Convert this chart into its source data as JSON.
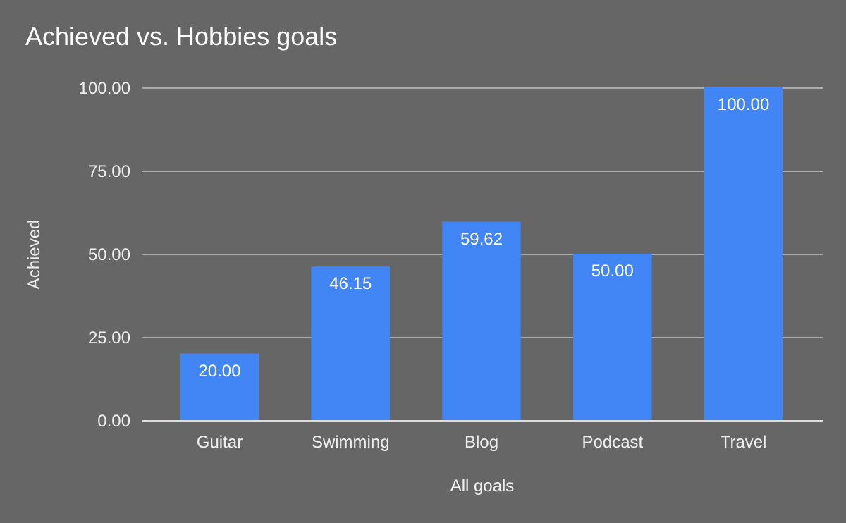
{
  "chart_data": {
    "type": "bar",
    "title": "Achieved vs. Hobbies goals",
    "xlabel": "All goals",
    "ylabel": "Achieved",
    "categories": [
      "Guitar",
      "Swimming",
      "Blog",
      "Podcast",
      "Travel"
    ],
    "values": [
      20,
      46.15,
      59.62,
      50,
      100
    ],
    "value_labels": [
      "20.00",
      "46.15",
      "59.62",
      "50.00",
      "100.00"
    ],
    "color": "#4285f4",
    "ylim": [
      0,
      100
    ],
    "yticks": [
      {
        "value": 0,
        "label": "0.00"
      },
      {
        "value": 25,
        "label": "25.00"
      },
      {
        "value": 50,
        "label": "50.00"
      },
      {
        "value": 75,
        "label": "75.00"
      },
      {
        "value": 100,
        "label": "100.00"
      }
    ],
    "grid": "y"
  }
}
